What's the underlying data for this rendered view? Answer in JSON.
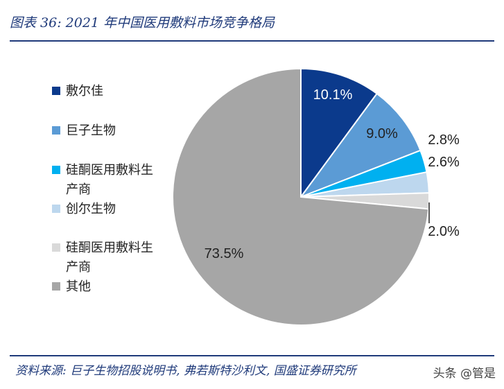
{
  "header": {
    "title": "图表 36:  2021 年中国医用敷料市场竞争格局"
  },
  "footer": {
    "source": "资料来源:  巨子生物招股说明书, 弗若斯特沙利文, 国盛证券研究所",
    "watermark": "头条 @管是"
  },
  "chart_data": {
    "type": "pie",
    "title": "2021 年中国医用敷料市场竞争格局",
    "start_angle_deg": 0,
    "direction": "clockwise",
    "slices": [
      {
        "name": "敷尔佳",
        "value": 10.1,
        "label": "10.1%",
        "color": "#0b3a8c"
      },
      {
        "name": "巨子生物",
        "value": 9.0,
        "label": "9.0%",
        "color": "#5b9bd5"
      },
      {
        "name": "硅酮医用敷料生产商",
        "value": 2.8,
        "label": "2.8%",
        "color": "#00b0f0"
      },
      {
        "name": "创尔生物",
        "value": 2.6,
        "label": "2.6%",
        "color": "#bdd7ee"
      },
      {
        "name": "硅酮医用敷料生产商",
        "value": 2.0,
        "label": "2.0%",
        "color": "#d9d9d9"
      },
      {
        "name": "其他",
        "value": 73.5,
        "label": "73.5%",
        "color": "#a6a6a6"
      }
    ]
  }
}
